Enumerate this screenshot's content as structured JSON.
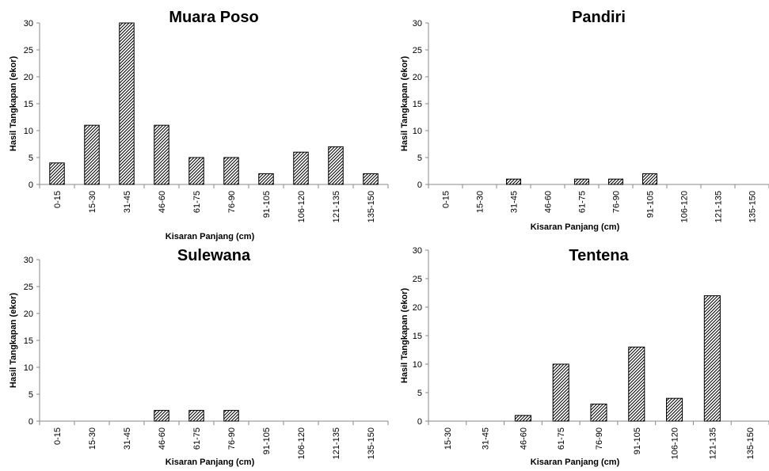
{
  "chart_data": [
    {
      "type": "bar",
      "title": "Muara Poso",
      "xlabel": "Kisaran Panjang (cm)",
      "ylabel": "Hasil Tangkapan (ekor)",
      "ylim": [
        0,
        30
      ],
      "yticks": [
        0,
        5,
        10,
        15,
        20,
        25,
        30
      ],
      "categories": [
        "0-15",
        "15-30",
        "31-45",
        "46-60",
        "61-75",
        "76-90",
        "91-105",
        "106-120",
        "121-135",
        "135-150"
      ],
      "values": [
        4,
        11,
        30,
        11,
        5,
        5,
        2,
        6,
        7,
        2
      ],
      "grid": false,
      "bar_fill": "diagonal hatch"
    },
    {
      "type": "bar",
      "title": "Pandiri",
      "xlabel": "Kisaran Panjang (cm)",
      "ylabel": "Hasil Tangkapan (ekor)",
      "ylim": [
        0,
        30
      ],
      "yticks": [
        0,
        5,
        10,
        15,
        20,
        25,
        30
      ],
      "categories": [
        "0-15",
        "15-30",
        "31-45",
        "46-60",
        "61-75",
        "76-90",
        "91-105",
        "106-120",
        "121-135",
        "135-150"
      ],
      "values": [
        0,
        0,
        1,
        0,
        1,
        1,
        2,
        0,
        0,
        0
      ],
      "grid": false,
      "bar_fill": "diagonal hatch"
    },
    {
      "type": "bar",
      "title": "Sulewana",
      "xlabel": "Kisaran Panjang (cm)",
      "ylabel": "Hasil Tangkapan (ekor)",
      "ylim": [
        0,
        30
      ],
      "yticks": [
        0,
        5,
        10,
        15,
        20,
        25,
        30
      ],
      "categories": [
        "0-15",
        "15-30",
        "31-45",
        "46-60",
        "61-75",
        "76-90",
        "91-105",
        "106-120",
        "121-135",
        "135-150"
      ],
      "values": [
        0,
        0,
        0,
        2,
        2,
        2,
        0,
        0,
        0,
        0
      ],
      "grid": false,
      "bar_fill": "diagonal hatch"
    },
    {
      "type": "bar",
      "title": "Tentena",
      "xlabel": "Kisaran Panjang (cm)",
      "ylabel": "Hasil Tangkapan (ekor)",
      "ylim": [
        0,
        30
      ],
      "yticks": [
        0,
        5,
        10,
        15,
        20,
        25,
        30
      ],
      "categories": [
        "15-30",
        "31-45",
        "46-60",
        "61-75",
        "76-90",
        "91-105",
        "106-120",
        "121-135",
        "135-150"
      ],
      "values": [
        0,
        0,
        1,
        10,
        3,
        13,
        4,
        22,
        0
      ],
      "grid": false,
      "bar_fill": "diagonal hatch"
    }
  ]
}
